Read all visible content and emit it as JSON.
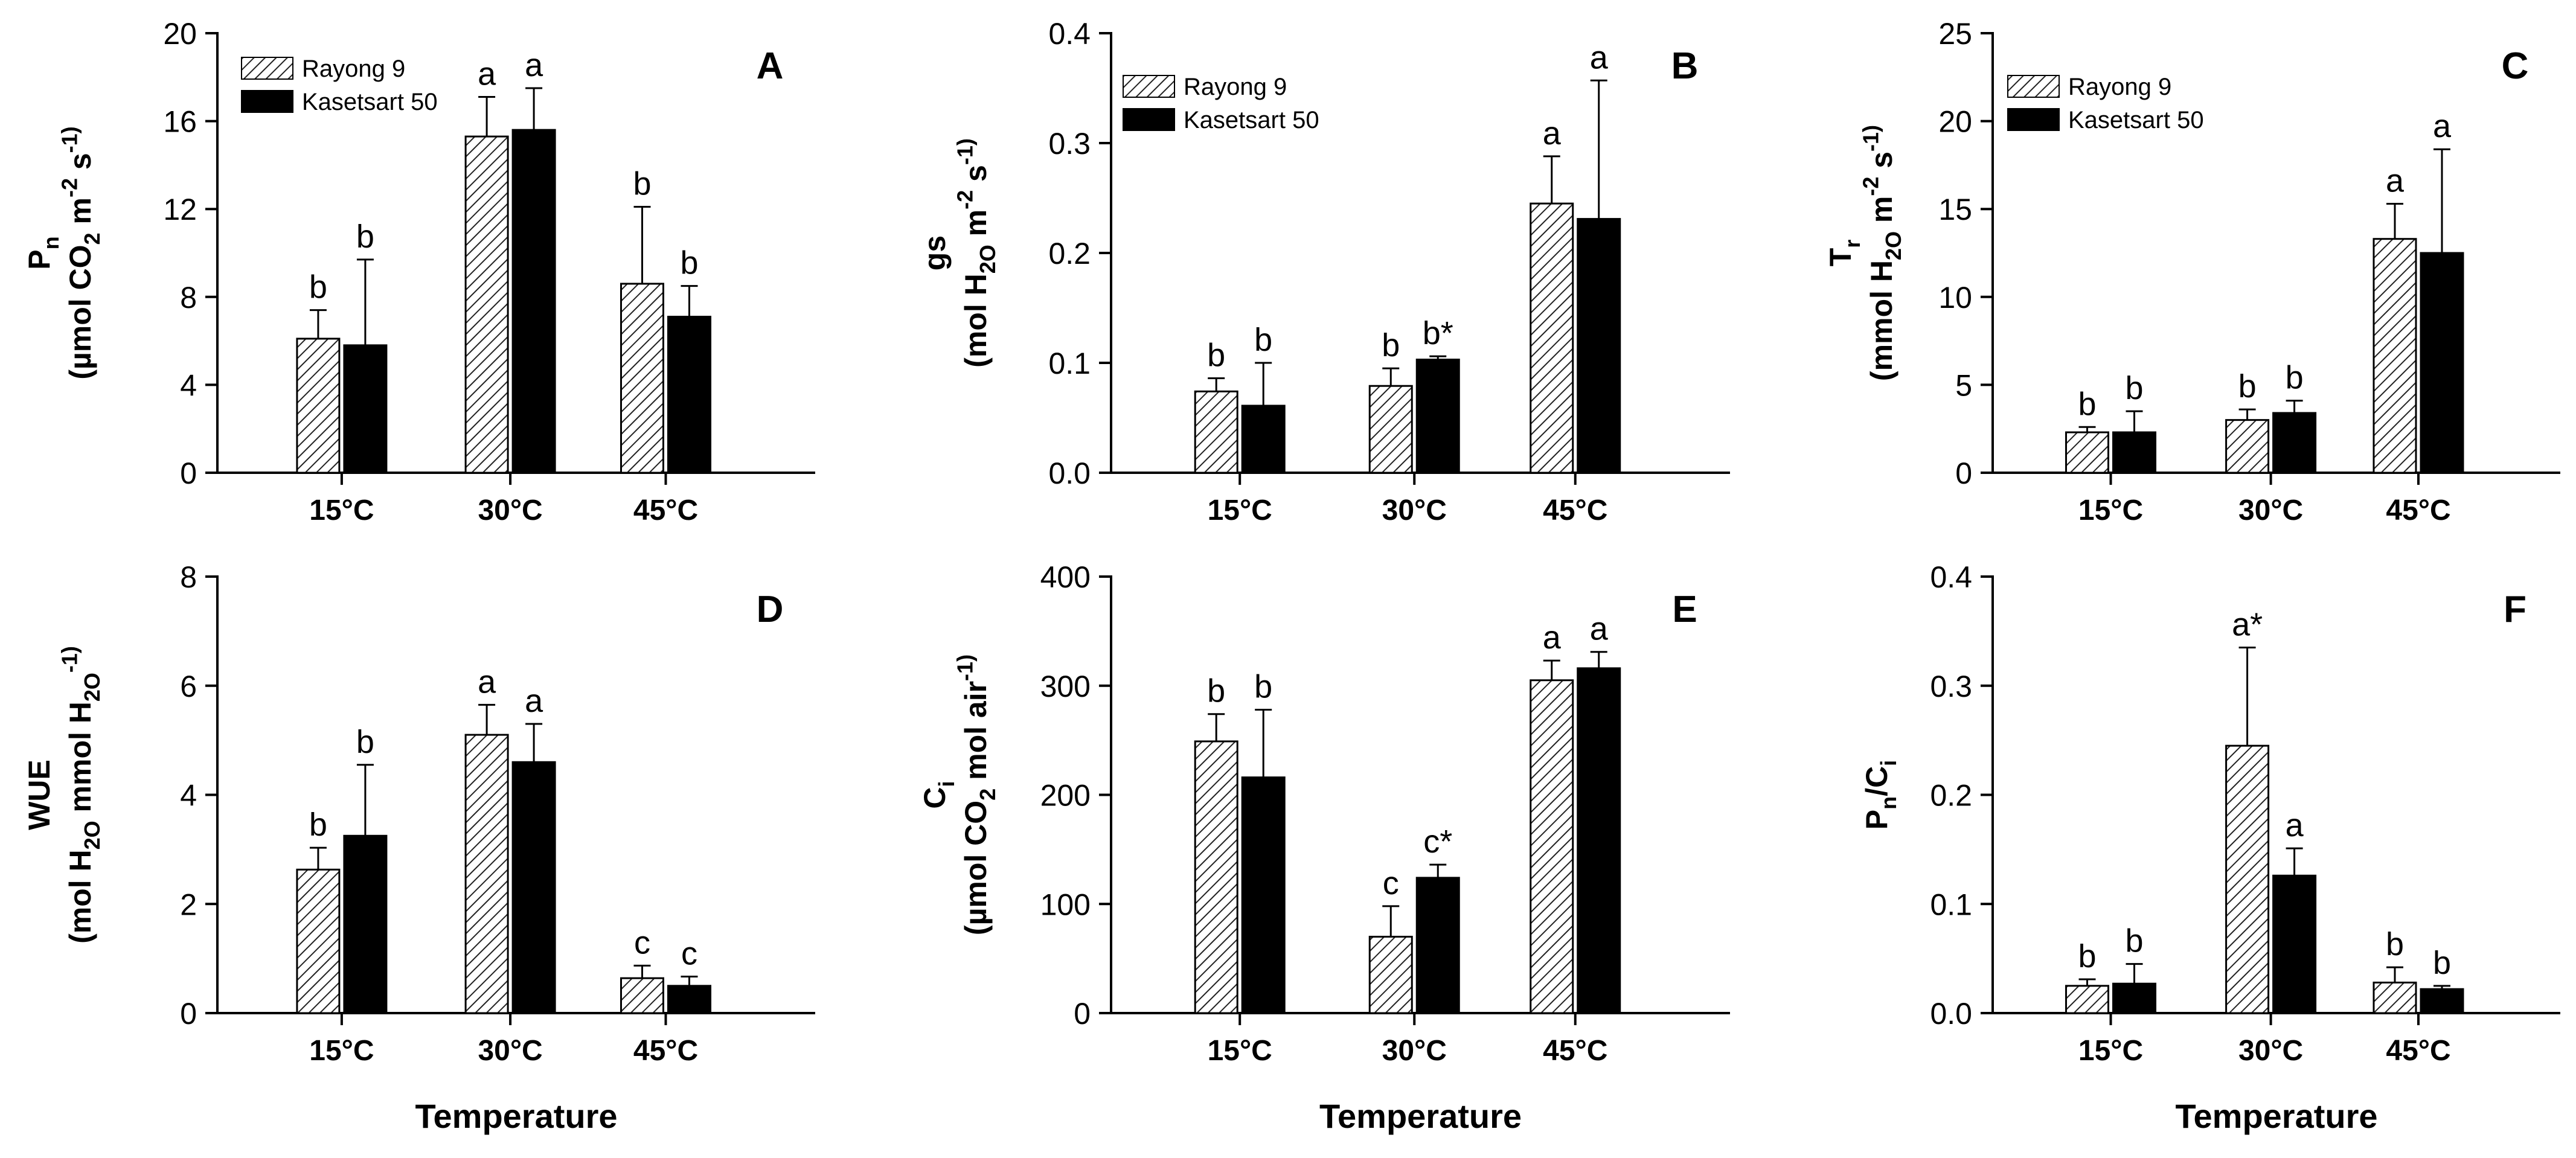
{
  "chart_data": [
    {
      "id": "A",
      "panel_label": "A",
      "type": "bar",
      "categories": [
        "15°C",
        "30°C",
        "45°C"
      ],
      "ylim": [
        0,
        20
      ],
      "yticks": [
        "0",
        "4",
        "8",
        "12",
        "16",
        "20"
      ],
      "ylabel_lines": [
        "P_n",
        "(µmol CO_2 m^-2 s^-1)"
      ],
      "xlabel": "",
      "legend": true,
      "series": [
        {
          "name": "Rayong 9",
          "values": [
            6.1,
            15.3,
            8.6
          ],
          "errors": [
            1.3,
            1.8,
            3.5
          ],
          "labels": [
            "b",
            "a",
            "b"
          ]
        },
        {
          "name": "Kasetsart 50",
          "values": [
            5.8,
            15.6,
            7.1
          ],
          "errors": [
            3.9,
            1.9,
            1.4
          ],
          "labels": [
            "b",
            "a",
            "b"
          ]
        }
      ]
    },
    {
      "id": "B",
      "panel_label": "B",
      "type": "bar",
      "categories": [
        "15°C",
        "30°C",
        "45°C"
      ],
      "ylim": [
        0,
        0.4
      ],
      "yticks": [
        "0.0",
        "0.1",
        "0.2",
        "0.3",
        "0.4"
      ],
      "ylabel_lines": [
        "gs",
        "(mol H_2O m^-2 s^-1)"
      ],
      "xlabel": "",
      "legend": true,
      "series": [
        {
          "name": "Rayong 9",
          "values": [
            0.074,
            0.079,
            0.245
          ],
          "errors": [
            0.012,
            0.016,
            0.043
          ],
          "labels": [
            "b",
            "b",
            "a"
          ]
        },
        {
          "name": "Kasetsart 50",
          "values": [
            0.061,
            0.103,
            0.231
          ],
          "errors": [
            0.039,
            0.003,
            0.126
          ],
          "labels": [
            "b",
            "b*",
            "a"
          ]
        }
      ]
    },
    {
      "id": "C",
      "panel_label": "C",
      "type": "bar",
      "categories": [
        "15°C",
        "30°C",
        "45°C"
      ],
      "ylim": [
        0,
        25
      ],
      "yticks": [
        "0",
        "5",
        "10",
        "15",
        "20",
        "25"
      ],
      "ylabel_lines": [
        "T_r",
        "(mmol H_2O m^-2 s^-1)"
      ],
      "xlabel": "",
      "legend": true,
      "series": [
        {
          "name": "Rayong 9",
          "values": [
            2.3,
            3.0,
            13.3
          ],
          "errors": [
            0.3,
            0.6,
            2.0
          ],
          "labels": [
            "b",
            "b",
            "a"
          ]
        },
        {
          "name": "Kasetsart 50",
          "values": [
            2.3,
            3.4,
            12.5
          ],
          "errors": [
            1.2,
            0.7,
            5.9
          ],
          "labels": [
            "b",
            "b",
            "a"
          ]
        }
      ]
    },
    {
      "id": "D",
      "panel_label": "D",
      "type": "bar",
      "categories": [
        "15°C",
        "30°C",
        "45°C"
      ],
      "ylim": [
        0,
        8
      ],
      "yticks": [
        "0",
        "2",
        "4",
        "6",
        "8"
      ],
      "ylabel_lines": [
        "WUE",
        "(mol H_2O mmol H_2O^-1)"
      ],
      "xlabel": "Temperature",
      "legend": false,
      "series": [
        {
          "name": "Rayong 9",
          "values": [
            2.63,
            5.1,
            0.64
          ],
          "errors": [
            0.4,
            0.55,
            0.23
          ],
          "labels": [
            "b",
            "a",
            "c"
          ]
        },
        {
          "name": "Kasetsart 50",
          "values": [
            3.25,
            4.6,
            0.5
          ],
          "errors": [
            1.3,
            0.7,
            0.17
          ],
          "labels": [
            "b",
            "a",
            "c"
          ]
        }
      ]
    },
    {
      "id": "E",
      "panel_label": "E",
      "type": "bar",
      "categories": [
        "15°C",
        "30°C",
        "45°C"
      ],
      "ylim": [
        0,
        400
      ],
      "yticks": [
        "0",
        "100",
        "200",
        "300",
        "400"
      ],
      "ylabel_lines": [
        "C_i",
        "(µmol CO_2 mol air^-1)"
      ],
      "xlabel": "Temperature",
      "legend": false,
      "series": [
        {
          "name": "Rayong 9",
          "values": [
            249,
            70,
            305
          ],
          "errors": [
            25,
            28,
            18
          ],
          "labels": [
            "b",
            "c",
            "a"
          ]
        },
        {
          "name": "Kasetsart 50",
          "values": [
            216,
            124,
            316
          ],
          "errors": [
            62,
            12,
            15
          ],
          "labels": [
            "b",
            "c*",
            "a"
          ]
        }
      ]
    },
    {
      "id": "F",
      "panel_label": "F",
      "type": "bar",
      "categories": [
        "15°C",
        "30°C",
        "45°C"
      ],
      "ylim": [
        0,
        0.4
      ],
      "yticks": [
        "0.0",
        "0.1",
        "0.2",
        "0.3",
        "0.4"
      ],
      "ylabel_lines": [
        "P_n/C_i"
      ],
      "xlabel": "Temperature",
      "legend": false,
      "series": [
        {
          "name": "Rayong 9",
          "values": [
            0.025,
            0.245,
            0.028
          ],
          "errors": [
            0.006,
            0.09,
            0.014
          ],
          "labels": [
            "b",
            "a*",
            "b"
          ]
        },
        {
          "name": "Kasetsart 50",
          "values": [
            0.027,
            0.126,
            0.022
          ],
          "errors": [
            0.018,
            0.025,
            0.003
          ],
          "labels": [
            "b",
            "a",
            "b"
          ]
        }
      ]
    }
  ]
}
